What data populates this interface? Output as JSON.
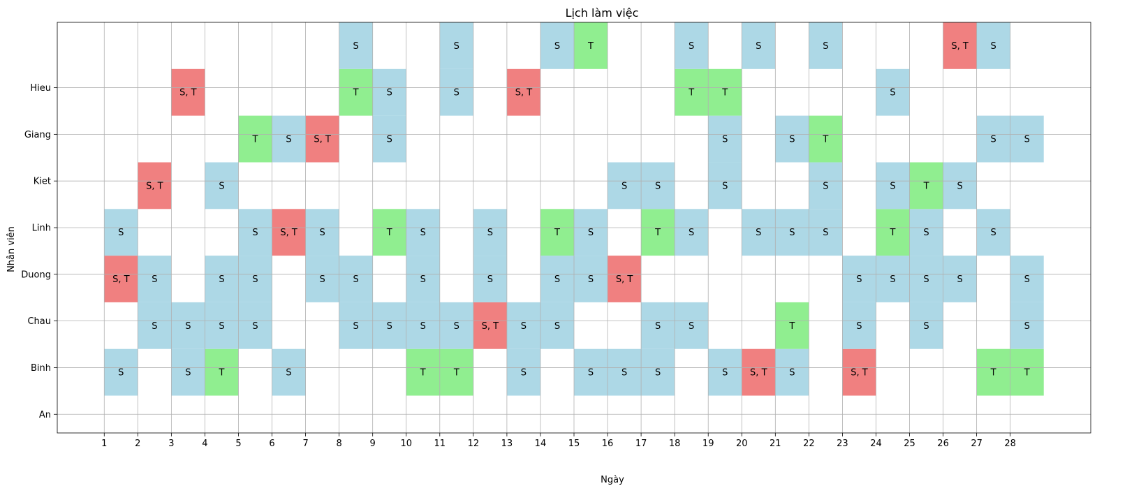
{
  "chart_data": {
    "type": "heatmap",
    "title": "Lịch làm việc",
    "xlabel": "Ngày",
    "ylabel": "Nhân viên",
    "x_ticks": [
      1,
      2,
      3,
      4,
      5,
      6,
      7,
      8,
      9,
      10,
      11,
      12,
      13,
      14,
      15,
      16,
      17,
      18,
      19,
      20,
      21,
      22,
      23,
      24,
      25,
      26,
      27,
      28
    ],
    "xlim": [
      -0.4,
      30.4
    ],
    "y_ticks": [
      "An",
      "Binh",
      "Chau",
      "Duong",
      "Linh",
      "Kiet",
      "Giang",
      "Hieu"
    ],
    "ylim": [
      -0.4,
      8.4
    ],
    "grid": true,
    "colors": {
      "S": "#add8e6",
      "T": "#90ee90",
      "S, T": "#f08080"
    },
    "rows": [
      {
        "row": 0,
        "cells": [
          {
            "day": 1,
            "label": "S"
          },
          {
            "day": 3,
            "label": "S"
          },
          {
            "day": 4,
            "label": "T"
          },
          {
            "day": 6,
            "label": "S"
          },
          {
            "day": 10,
            "label": "T"
          },
          {
            "day": 11,
            "label": "T"
          },
          {
            "day": 13,
            "label": "S"
          },
          {
            "day": 15,
            "label": "S"
          },
          {
            "day": 16,
            "label": "S"
          },
          {
            "day": 17,
            "label": "S"
          },
          {
            "day": 19,
            "label": "S"
          },
          {
            "day": 20,
            "label": "S, T"
          },
          {
            "day": 21,
            "label": "S"
          },
          {
            "day": 23,
            "label": "S, T"
          },
          {
            "day": 27,
            "label": "T"
          },
          {
            "day": 28,
            "label": "T"
          }
        ]
      },
      {
        "row": 1,
        "cells": [
          {
            "day": 2,
            "label": "S"
          },
          {
            "day": 3,
            "label": "S"
          },
          {
            "day": 4,
            "label": "S"
          },
          {
            "day": 5,
            "label": "S"
          },
          {
            "day": 8,
            "label": "S"
          },
          {
            "day": 9,
            "label": "S"
          },
          {
            "day": 10,
            "label": "S"
          },
          {
            "day": 11,
            "label": "S"
          },
          {
            "day": 12,
            "label": "S, T"
          },
          {
            "day": 13,
            "label": "S"
          },
          {
            "day": 14,
            "label": "S"
          },
          {
            "day": 17,
            "label": "S"
          },
          {
            "day": 18,
            "label": "S"
          },
          {
            "day": 21,
            "label": "T"
          },
          {
            "day": 23,
            "label": "S"
          },
          {
            "day": 25,
            "label": "S"
          },
          {
            "day": 28,
            "label": "S"
          }
        ]
      },
      {
        "row": 2,
        "cells": [
          {
            "day": 1,
            "label": "S, T"
          },
          {
            "day": 2,
            "label": "S"
          },
          {
            "day": 4,
            "label": "S"
          },
          {
            "day": 5,
            "label": "S"
          },
          {
            "day": 7,
            "label": "S"
          },
          {
            "day": 8,
            "label": "S"
          },
          {
            "day": 10,
            "label": "S"
          },
          {
            "day": 12,
            "label": "S"
          },
          {
            "day": 14,
            "label": "S"
          },
          {
            "day": 15,
            "label": "S"
          },
          {
            "day": 16,
            "label": "S, T"
          },
          {
            "day": 23,
            "label": "S"
          },
          {
            "day": 24,
            "label": "S"
          },
          {
            "day": 25,
            "label": "S"
          },
          {
            "day": 26,
            "label": "S"
          },
          {
            "day": 28,
            "label": "S"
          }
        ]
      },
      {
        "row": 3,
        "cells": [
          {
            "day": 1,
            "label": "S"
          },
          {
            "day": 5,
            "label": "S"
          },
          {
            "day": 6,
            "label": "S, T"
          },
          {
            "day": 7,
            "label": "S"
          },
          {
            "day": 9,
            "label": "T"
          },
          {
            "day": 10,
            "label": "S"
          },
          {
            "day": 12,
            "label": "S"
          },
          {
            "day": 14,
            "label": "T"
          },
          {
            "day": 15,
            "label": "S"
          },
          {
            "day": 17,
            "label": "T"
          },
          {
            "day": 18,
            "label": "S"
          },
          {
            "day": 20,
            "label": "S"
          },
          {
            "day": 21,
            "label": "S"
          },
          {
            "day": 22,
            "label": "S"
          },
          {
            "day": 24,
            "label": "T"
          },
          {
            "day": 25,
            "label": "S"
          },
          {
            "day": 27,
            "label": "S"
          }
        ]
      },
      {
        "row": 4,
        "cells": [
          {
            "day": 2,
            "label": "S, T"
          },
          {
            "day": 4,
            "label": "S"
          },
          {
            "day": 16,
            "label": "S"
          },
          {
            "day": 17,
            "label": "S"
          },
          {
            "day": 19,
            "label": "S"
          },
          {
            "day": 22,
            "label": "S"
          },
          {
            "day": 24,
            "label": "S"
          },
          {
            "day": 25,
            "label": "T"
          },
          {
            "day": 26,
            "label": "S"
          }
        ]
      },
      {
        "row": 5,
        "cells": [
          {
            "day": 5,
            "label": "T"
          },
          {
            "day": 6,
            "label": "S"
          },
          {
            "day": 7,
            "label": "S, T"
          },
          {
            "day": 9,
            "label": "S"
          },
          {
            "day": 19,
            "label": "S"
          },
          {
            "day": 21,
            "label": "S"
          },
          {
            "day": 22,
            "label": "T"
          },
          {
            "day": 27,
            "label": "S"
          },
          {
            "day": 28,
            "label": "S"
          }
        ]
      },
      {
        "row": 6,
        "cells": [
          {
            "day": 3,
            "label": "S, T"
          },
          {
            "day": 8,
            "label": "T"
          },
          {
            "day": 9,
            "label": "S"
          },
          {
            "day": 11,
            "label": "S"
          },
          {
            "day": 13,
            "label": "S, T"
          },
          {
            "day": 18,
            "label": "T"
          },
          {
            "day": 19,
            "label": "T"
          },
          {
            "day": 24,
            "label": "S"
          }
        ]
      },
      {
        "row": 7,
        "cells": [
          {
            "day": 8,
            "label": "S"
          },
          {
            "day": 11,
            "label": "S"
          },
          {
            "day": 14,
            "label": "S"
          },
          {
            "day": 15,
            "label": "T"
          },
          {
            "day": 18,
            "label": "S"
          },
          {
            "day": 20,
            "label": "S"
          },
          {
            "day": 22,
            "label": "S"
          },
          {
            "day": 26,
            "label": "S, T"
          },
          {
            "day": 27,
            "label": "S"
          }
        ]
      }
    ]
  }
}
